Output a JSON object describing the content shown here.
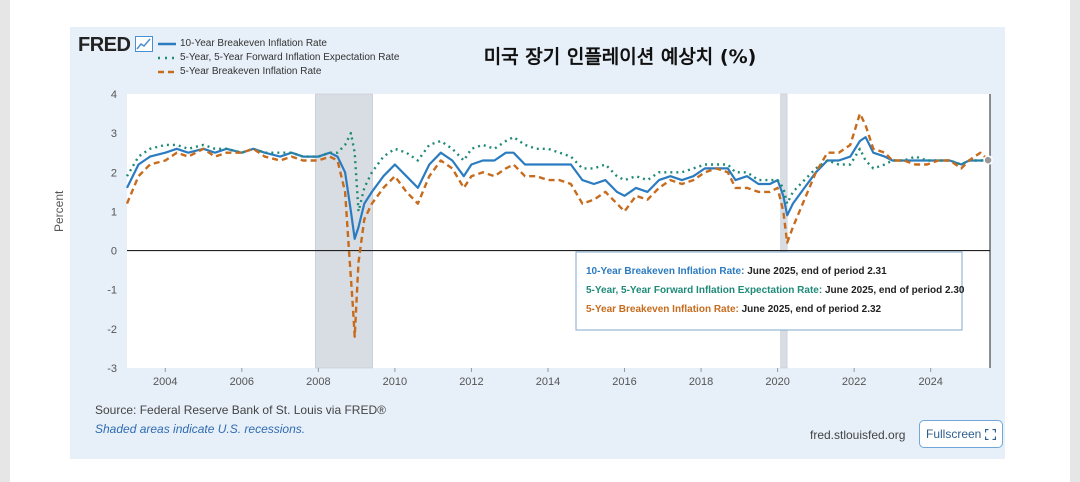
{
  "header": {
    "logo_text": "FRED",
    "title": "미국 장기 인플레이션 예상치 (%)"
  },
  "footer": {
    "source": "Source: Federal Reserve Bank of St. Louis via FRED®",
    "note": "Shaded areas indicate U.S. recessions.",
    "url": "fred.stlouisfed.org",
    "fullscreen_label": "Fullscreen"
  },
  "colors": {
    "ten_year": "#2b7bc0",
    "five_five": "#1f8a78",
    "five_year": "#c76b1d",
    "recession": "#d8dde3"
  },
  "annotations": [
    {
      "series": "10-Year Breakeven Inflation Rate",
      "text": "June 2025, end of period 2.31"
    },
    {
      "series": "5-Year, 5-Year Forward Inflation Expectation Rate",
      "text": "June 2025, end of period 2.30"
    },
    {
      "series": "5-Year Breakeven Inflation Rate",
      "text": "June 2025, end of period 2.32"
    }
  ],
  "chart_data": {
    "type": "line",
    "title": "미국 장기 인플레이션 예상치 (%)",
    "xlabel": "",
    "ylabel": "Percent",
    "xlim": [
      2003.0,
      2025.55
    ],
    "ylim": [
      -3,
      4
    ],
    "x_ticks": [
      2004,
      2006,
      2008,
      2010,
      2012,
      2014,
      2016,
      2018,
      2020,
      2022,
      2024
    ],
    "y_ticks": [
      -3,
      -2,
      -1,
      0,
      1,
      2,
      3,
      4
    ],
    "recessions": [
      [
        2007.92,
        2009.42
      ],
      [
        2020.08,
        2020.25
      ]
    ],
    "series": [
      {
        "name": "10-Year Breakeven Inflation Rate",
        "style": "solid",
        "x": [
          2003.0,
          2003.3,
          2003.6,
          2004.0,
          2004.3,
          2004.6,
          2005.0,
          2005.3,
          2005.6,
          2006.0,
          2006.3,
          2006.6,
          2007.0,
          2007.3,
          2007.6,
          2008.0,
          2008.3,
          2008.5,
          2008.7,
          2008.85,
          2008.95,
          2009.05,
          2009.2,
          2009.4,
          2009.7,
          2010.0,
          2010.3,
          2010.6,
          2010.9,
          2011.2,
          2011.5,
          2011.8,
          2012.0,
          2012.3,
          2012.6,
          2012.9,
          2013.1,
          2013.4,
          2013.7,
          2014.0,
          2014.3,
          2014.6,
          2014.9,
          2015.2,
          2015.5,
          2015.8,
          2016.0,
          2016.3,
          2016.6,
          2016.9,
          2017.2,
          2017.5,
          2017.8,
          2018.1,
          2018.4,
          2018.7,
          2018.9,
          2019.2,
          2019.5,
          2019.8,
          2020.0,
          2020.15,
          2020.25,
          2020.4,
          2020.7,
          2021.0,
          2021.3,
          2021.6,
          2021.9,
          2022.15,
          2022.3,
          2022.5,
          2022.8,
          2023.0,
          2023.3,
          2023.6,
          2023.9,
          2024.2,
          2024.5,
          2024.8,
          2025.0,
          2025.3,
          2025.5
        ],
        "y": [
          1.6,
          2.2,
          2.4,
          2.5,
          2.6,
          2.5,
          2.6,
          2.5,
          2.6,
          2.5,
          2.6,
          2.5,
          2.4,
          2.5,
          2.4,
          2.4,
          2.5,
          2.4,
          2.0,
          1.0,
          0.3,
          0.6,
          1.2,
          1.5,
          1.9,
          2.2,
          1.9,
          1.6,
          2.2,
          2.5,
          2.3,
          1.9,
          2.2,
          2.3,
          2.3,
          2.5,
          2.5,
          2.2,
          2.2,
          2.2,
          2.2,
          2.2,
          1.8,
          1.7,
          1.8,
          1.5,
          1.4,
          1.6,
          1.5,
          1.8,
          1.9,
          1.8,
          1.9,
          2.1,
          2.1,
          2.1,
          1.8,
          1.9,
          1.7,
          1.7,
          1.8,
          1.4,
          0.9,
          1.2,
          1.6,
          2.0,
          2.3,
          2.3,
          2.4,
          2.8,
          2.9,
          2.5,
          2.4,
          2.3,
          2.3,
          2.3,
          2.3,
          2.3,
          2.3,
          2.2,
          2.3,
          2.3,
          2.31
        ]
      },
      {
        "name": "5-Year, 5-Year Forward Inflation Expectation Rate",
        "style": "dotted",
        "x": [
          2003.0,
          2003.3,
          2003.6,
          2004.0,
          2004.3,
          2004.6,
          2005.0,
          2005.3,
          2005.6,
          2006.0,
          2006.3,
          2006.6,
          2007.0,
          2007.3,
          2007.6,
          2008.0,
          2008.3,
          2008.5,
          2008.7,
          2008.85,
          2008.95,
          2009.05,
          2009.2,
          2009.4,
          2009.7,
          2010.0,
          2010.3,
          2010.6,
          2010.9,
          2011.2,
          2011.5,
          2011.8,
          2012.0,
          2012.3,
          2012.6,
          2012.9,
          2013.1,
          2013.4,
          2013.7,
          2014.0,
          2014.3,
          2014.6,
          2014.9,
          2015.2,
          2015.5,
          2015.8,
          2016.0,
          2016.3,
          2016.6,
          2016.9,
          2017.2,
          2017.5,
          2017.8,
          2018.1,
          2018.4,
          2018.7,
          2018.9,
          2019.2,
          2019.5,
          2019.8,
          2020.0,
          2020.15,
          2020.25,
          2020.4,
          2020.7,
          2021.0,
          2021.3,
          2021.6,
          2021.9,
          2022.15,
          2022.3,
          2022.5,
          2022.8,
          2023.0,
          2023.3,
          2023.6,
          2023.9,
          2024.2,
          2024.5,
          2024.8,
          2025.0,
          2025.3,
          2025.5
        ],
        "y": [
          1.9,
          2.4,
          2.6,
          2.7,
          2.7,
          2.6,
          2.7,
          2.6,
          2.6,
          2.5,
          2.6,
          2.5,
          2.5,
          2.5,
          2.4,
          2.4,
          2.5,
          2.5,
          2.7,
          3.0,
          2.5,
          1.0,
          1.6,
          2.0,
          2.4,
          2.6,
          2.5,
          2.3,
          2.7,
          2.8,
          2.6,
          2.3,
          2.6,
          2.7,
          2.6,
          2.8,
          2.9,
          2.7,
          2.6,
          2.6,
          2.5,
          2.4,
          2.1,
          2.1,
          2.2,
          1.9,
          1.8,
          1.9,
          1.8,
          2.0,
          2.0,
          2.0,
          2.1,
          2.2,
          2.2,
          2.2,
          2.0,
          2.0,
          1.8,
          1.8,
          1.8,
          1.6,
          1.2,
          1.5,
          1.8,
          2.1,
          2.3,
          2.2,
          2.2,
          2.6,
          2.3,
          2.1,
          2.2,
          2.3,
          2.3,
          2.4,
          2.3,
          2.3,
          2.3,
          2.2,
          2.3,
          2.3,
          2.3
        ]
      },
      {
        "name": "5-Year Breakeven Inflation Rate",
        "style": "dashed",
        "x": [
          2003.0,
          2003.3,
          2003.6,
          2004.0,
          2004.3,
          2004.6,
          2005.0,
          2005.3,
          2005.6,
          2006.0,
          2006.3,
          2006.6,
          2007.0,
          2007.3,
          2007.6,
          2008.0,
          2008.3,
          2008.5,
          2008.7,
          2008.8,
          2008.9,
          2008.95,
          2009.05,
          2009.2,
          2009.4,
          2009.7,
          2010.0,
          2010.3,
          2010.6,
          2010.9,
          2011.2,
          2011.5,
          2011.8,
          2012.0,
          2012.3,
          2012.6,
          2012.9,
          2013.1,
          2013.4,
          2013.7,
          2014.0,
          2014.3,
          2014.6,
          2014.9,
          2015.2,
          2015.5,
          2015.8,
          2016.0,
          2016.3,
          2016.6,
          2016.9,
          2017.2,
          2017.5,
          2017.8,
          2018.1,
          2018.4,
          2018.7,
          2018.9,
          2019.2,
          2019.5,
          2019.8,
          2020.0,
          2020.15,
          2020.25,
          2020.4,
          2020.7,
          2021.0,
          2021.3,
          2021.6,
          2021.9,
          2022.15,
          2022.3,
          2022.5,
          2022.8,
          2023.0,
          2023.3,
          2023.6,
          2023.9,
          2024.2,
          2024.5,
          2024.8,
          2025.0,
          2025.3,
          2025.5
        ],
        "y": [
          1.2,
          1.9,
          2.2,
          2.3,
          2.5,
          2.4,
          2.6,
          2.4,
          2.5,
          2.5,
          2.6,
          2.4,
          2.3,
          2.4,
          2.3,
          2.3,
          2.4,
          2.3,
          1.5,
          0.0,
          -1.4,
          -2.2,
          -0.3,
          0.8,
          1.2,
          1.6,
          1.9,
          1.5,
          1.2,
          1.9,
          2.3,
          2.1,
          1.6,
          1.9,
          2.0,
          1.9,
          2.1,
          2.2,
          1.9,
          1.9,
          1.8,
          1.8,
          1.7,
          1.2,
          1.3,
          1.5,
          1.2,
          1.0,
          1.4,
          1.3,
          1.6,
          1.8,
          1.7,
          1.8,
          2.0,
          2.1,
          2.0,
          1.6,
          1.6,
          1.5,
          1.5,
          1.6,
          1.0,
          0.2,
          0.6,
          1.3,
          2.0,
          2.5,
          2.5,
          2.7,
          3.5,
          3.2,
          2.6,
          2.5,
          2.3,
          2.3,
          2.2,
          2.2,
          2.3,
          2.3,
          2.1,
          2.3,
          2.5,
          2.32
        ]
      }
    ],
    "legend_position": "top-left",
    "grid": false
  }
}
